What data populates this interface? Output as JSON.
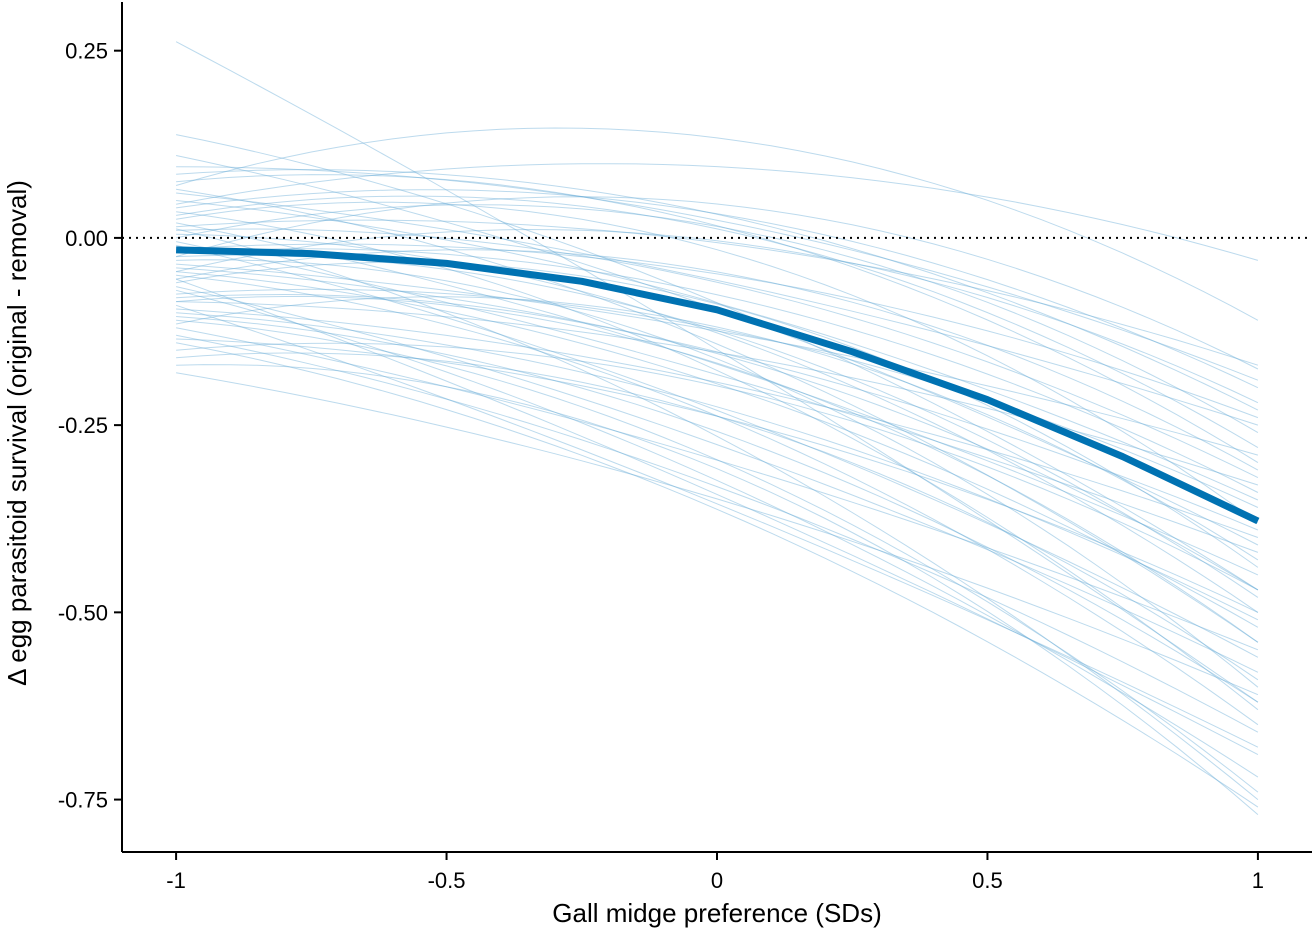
{
  "chart_data": {
    "type": "line",
    "title": "",
    "xlabel": "Gall midge preference (SDs)",
    "ylabel": "Δ egg parasitoid survival (original - removal)",
    "xlim": [
      -1.1,
      1.1
    ],
    "ylim": [
      -0.82,
      0.315
    ],
    "x_ticks": [
      -1,
      -0.5,
      0,
      0.5,
      1
    ],
    "x_tick_labels": [
      "-1",
      "-0.5",
      "0",
      "0.5",
      "1"
    ],
    "y_ticks": [
      0.25,
      0.0,
      -0.25,
      -0.5,
      -0.75
    ],
    "y_tick_labels": [
      "0.25",
      "0.00",
      "-0.25",
      "-0.50",
      "-0.75"
    ],
    "grid": false,
    "reference_line": {
      "y": 0,
      "style": "dotted"
    },
    "colors": {
      "mean": "#0072b2",
      "draws": "#6baed6",
      "reference": "#000000"
    },
    "mean_curve": {
      "x": [
        -1,
        -0.75,
        -0.5,
        -0.25,
        0,
        0.25,
        0.5,
        0.75,
        1
      ],
      "y": [
        -0.016,
        -0.021,
        -0.034,
        -0.058,
        -0.096,
        -0.152,
        -0.216,
        -0.292,
        -0.378
      ]
    },
    "posterior_draws": [
      {
        "start": 0.262,
        "end": -0.62
      },
      {
        "start": 0.11,
        "end": -0.41
      },
      {
        "start": 0.138,
        "end": -0.47
      },
      {
        "start": 0.085,
        "end": -0.23
      },
      {
        "start": 0.075,
        "end": -0.3
      },
      {
        "start": 0.07,
        "end": -0.11
      },
      {
        "start": 0.06,
        "end": -0.25
      },
      {
        "start": 0.05,
        "end": -0.35
      },
      {
        "start": 0.045,
        "end": -0.03
      },
      {
        "start": 0.04,
        "end": -0.2
      },
      {
        "start": 0.03,
        "end": -0.28
      },
      {
        "start": 0.025,
        "end": -0.38
      },
      {
        "start": 0.02,
        "end": -0.45
      },
      {
        "start": 0.015,
        "end": -0.17
      },
      {
        "start": 0.01,
        "end": -0.32
      },
      {
        "start": 0.005,
        "end": -0.5
      },
      {
        "start": 0.0,
        "end": -0.26
      },
      {
        "start": -0.005,
        "end": -0.42
      },
      {
        "start": -0.01,
        "end": -0.56
      },
      {
        "start": -0.015,
        "end": -0.24
      },
      {
        "start": -0.02,
        "end": -0.34
      },
      {
        "start": -0.025,
        "end": -0.48
      },
      {
        "start": -0.03,
        "end": -0.6
      },
      {
        "start": -0.035,
        "end": -0.29
      },
      {
        "start": -0.04,
        "end": -0.39
      },
      {
        "start": -0.045,
        "end": -0.52
      },
      {
        "start": -0.05,
        "end": -0.65
      },
      {
        "start": -0.055,
        "end": -0.31
      },
      {
        "start": -0.06,
        "end": -0.44
      },
      {
        "start": -0.065,
        "end": -0.58
      },
      {
        "start": -0.07,
        "end": -0.72
      },
      {
        "start": -0.075,
        "end": -0.36
      },
      {
        "start": -0.08,
        "end": -0.47
      },
      {
        "start": -0.085,
        "end": -0.54
      },
      {
        "start": -0.09,
        "end": -0.68
      },
      {
        "start": -0.095,
        "end": -0.4
      },
      {
        "start": -0.1,
        "end": -0.51
      },
      {
        "start": -0.105,
        "end": -0.62
      },
      {
        "start": -0.11,
        "end": -0.74
      },
      {
        "start": -0.115,
        "end": -0.43
      },
      {
        "start": -0.12,
        "end": -0.55
      },
      {
        "start": -0.13,
        "end": -0.66
      },
      {
        "start": -0.14,
        "end": -0.76
      },
      {
        "start": -0.15,
        "end": -0.47
      },
      {
        "start": -0.16,
        "end": -0.59
      },
      {
        "start": -0.17,
        "end": -0.77
      },
      {
        "start": -0.18,
        "end": -0.61
      },
      {
        "start": 0.095,
        "end": -0.19
      },
      {
        "start": 0.065,
        "end": -0.54
      },
      {
        "start": 0.035,
        "end": -0.63
      },
      {
        "start": -0.025,
        "end": -0.175
      },
      {
        "start": -0.055,
        "end": -0.69
      },
      {
        "start": -0.085,
        "end": -0.33
      },
      {
        "start": -0.135,
        "end": -0.5
      },
      {
        "start": 0.012,
        "end": -0.75
      },
      {
        "start": -0.045,
        "end": -0.22
      }
    ]
  }
}
